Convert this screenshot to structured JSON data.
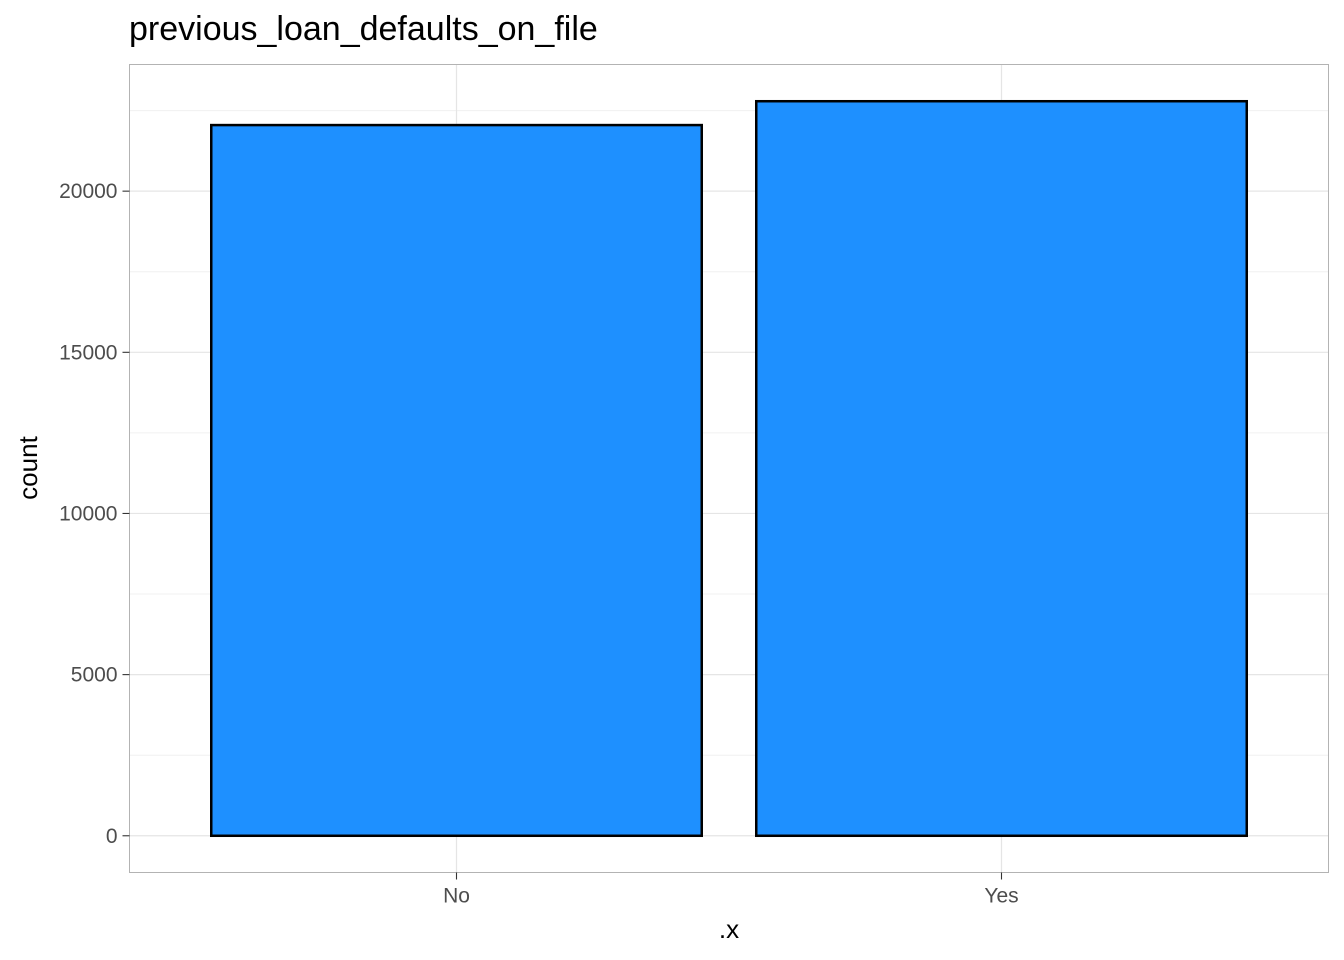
{
  "chart_data": {
    "type": "bar",
    "title": "previous_loan_defaults_on_file",
    "xlabel": ".x",
    "ylabel": "count",
    "categories": [
      "No",
      "Yes"
    ],
    "values": [
      22050,
      22790
    ],
    "ylim": [
      -1139.5,
      23929.5
    ],
    "yticks": [
      0,
      5000,
      10000,
      15000,
      20000
    ],
    "ytick_labels": [
      "0",
      "5000",
      "10000",
      "15000",
      "20000"
    ],
    "grid": true,
    "legend": "none",
    "colors": {
      "bar_fill": "#1E90FF",
      "bar_stroke": "#000000",
      "grid": "#e5e5e5",
      "panel_border": "#b3b3b3"
    }
  }
}
